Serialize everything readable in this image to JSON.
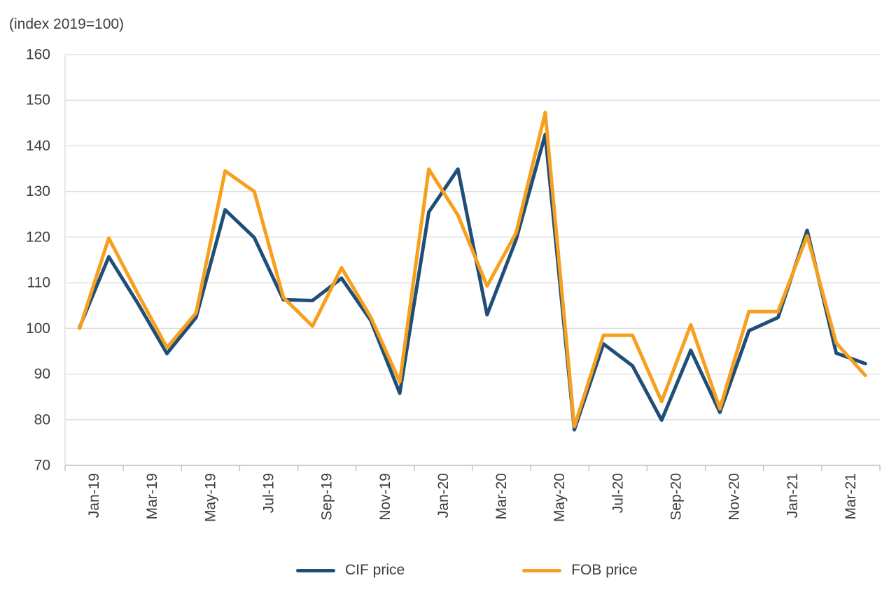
{
  "chart_data": {
    "type": "line",
    "title": "(index 2019=100)",
    "x": [
      "Jan-19",
      "Feb-19",
      "Mar-19",
      "Apr-19",
      "May-19",
      "Jun-19",
      "Jul-19",
      "Aug-19",
      "Sep-19",
      "Oct-19",
      "Nov-19",
      "Dec-19",
      "Jan-20",
      "Feb-20",
      "Mar-20",
      "Apr-20",
      "May-20",
      "Jun-20",
      "Jul-20",
      "Aug-20",
      "Sep-20",
      "Oct-20",
      "Nov-20",
      "Dec-20",
      "Jan-21",
      "Feb-21",
      "Mar-21",
      "Apr-21"
    ],
    "x_axis_shown_labels": [
      "Jan-19",
      "Mar-19",
      "May-19",
      "Jul-19",
      "Sep-19",
      "Nov-19",
      "Jan-20",
      "Mar-20",
      "May-20",
      "Jul-20",
      "Sep-20",
      "Nov-20",
      "Jan-21",
      "Mar-21"
    ],
    "y_ticks": [
      70,
      80,
      90,
      100,
      110,
      120,
      130,
      140,
      150,
      160
    ],
    "ylim": [
      70,
      160
    ],
    "grid": "horizontal-only",
    "legend_position": "bottom-center",
    "series": [
      {
        "name": "CIF price",
        "color": "#1F4E79",
        "values": [
          100.3,
          115.7,
          105.5,
          94.5,
          102.4,
          126.0,
          119.9,
          106.3,
          106.1,
          111.0,
          101.8,
          85.8,
          125.5,
          134.9,
          103.0,
          119.5,
          142.5,
          77.8,
          96.6,
          91.8,
          79.9,
          95.2,
          81.6,
          99.5,
          102.4,
          121.5,
          94.6,
          92.3
        ]
      },
      {
        "name": "FOB price",
        "color": "#F7A01E",
        "values": [
          100.0,
          119.8,
          107.6,
          95.8,
          103.4,
          134.5,
          130.0,
          106.8,
          100.5,
          113.3,
          102.5,
          88.3,
          134.9,
          124.8,
          109.3,
          121.0,
          147.3,
          78.5,
          98.5,
          98.5,
          84.0,
          100.8,
          82.4,
          103.7,
          103.7,
          120.3,
          96.8,
          89.7
        ]
      }
    ],
    "colors": {
      "gridline": "#DCDCDC",
      "axis_line": "#BDBDBD",
      "text": "#3d3d3d"
    }
  }
}
